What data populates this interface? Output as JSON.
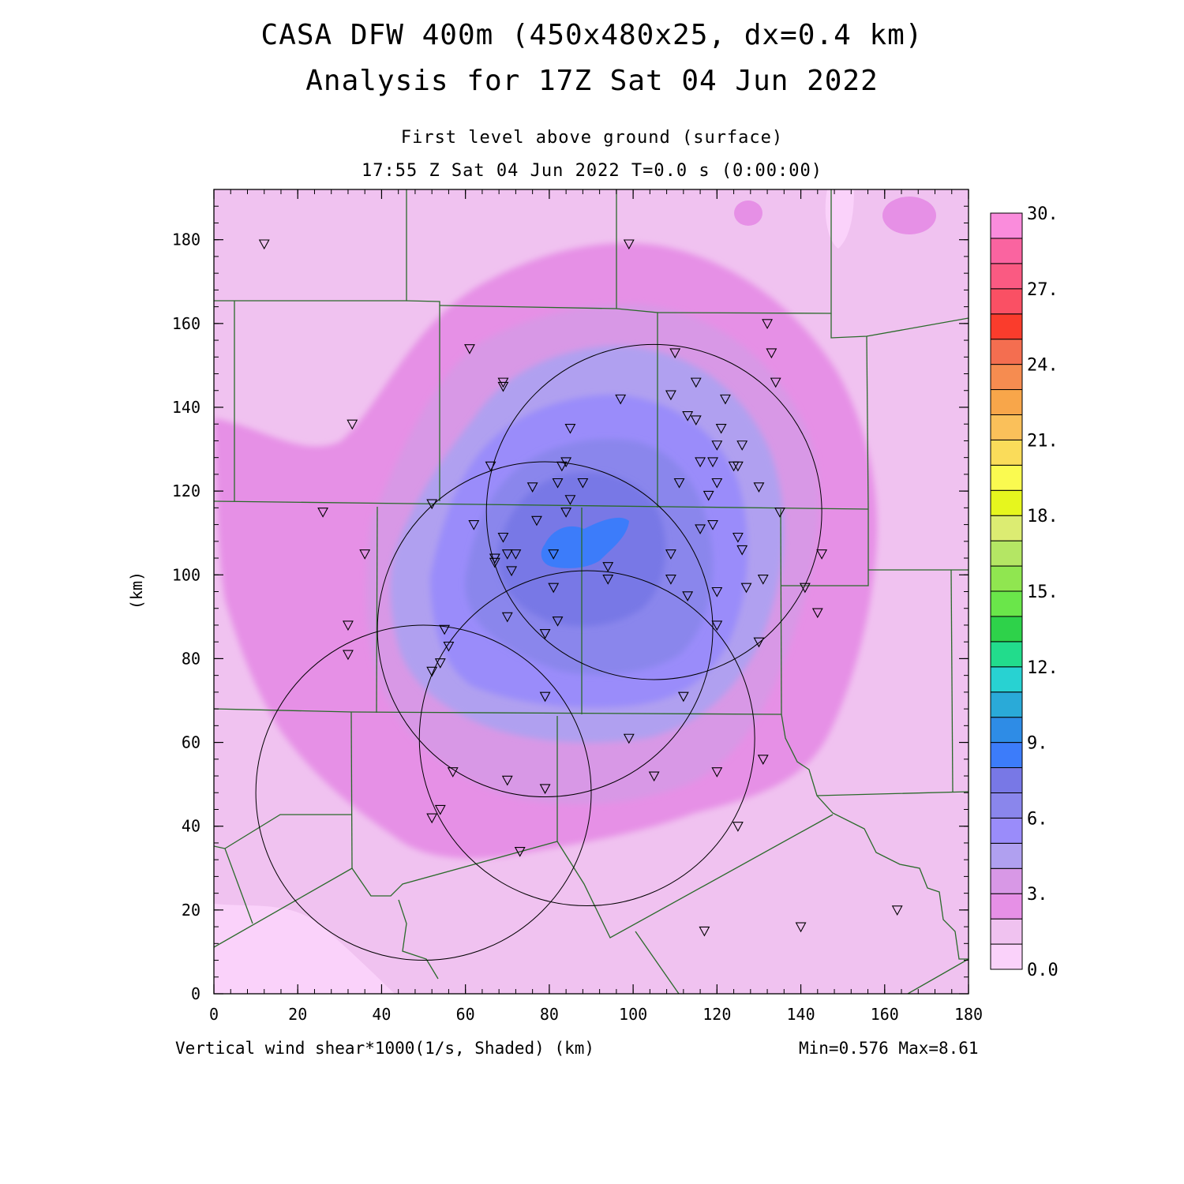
{
  "title": {
    "line1": "CASA DFW 400m (450x480x25, dx=0.4 km)",
    "line2": "Analysis for 17Z Sat 04 Jun 2022"
  },
  "subtitle": {
    "level": "First level above ground (surface)",
    "time": "17:55 Z Sat 04 Jun 2022   T=0.0 s (0:00:00)"
  },
  "footer": {
    "field": "Vertical wind shear*1000(1/s, Shaded)  (km)",
    "range": "Min=0.576 Max=8.61"
  },
  "axes": {
    "x_ticks": [
      "0",
      "20",
      "40",
      "60",
      "80",
      "100",
      "120",
      "140",
      "160",
      "180"
    ],
    "y_ticks": [
      "0",
      "20",
      "40",
      "60",
      "80",
      "100",
      "120",
      "140",
      "160",
      "180"
    ],
    "y_unit": "(km)",
    "x_range": [
      0,
      180
    ],
    "y_range": [
      0,
      192
    ]
  },
  "colorbar": {
    "labels": [
      "0.0",
      "3.",
      "6.",
      "9.",
      "12.",
      "15.",
      "18.",
      "21.",
      "24.",
      "27.",
      "30."
    ],
    "colors": [
      "#fad2fa",
      "#f0c2f0",
      "#e690e6",
      "#d898e6",
      "#b0a0f0",
      "#9a8cfa",
      "#8a86ec",
      "#7878e6",
      "#3c7cfa",
      "#2e8ce6",
      "#2aaad8",
      "#28d2d2",
      "#22dc8c",
      "#2ed24a",
      "#6ae64a",
      "#90e650",
      "#b4e664",
      "#dcec72",
      "#e6f61e",
      "#fafa50",
      "#fadc5a",
      "#fac05a",
      "#f8a64a",
      "#f68c50",
      "#f46e50",
      "#fa3c2c",
      "#fa5064",
      "#fa5a82",
      "#fa64a0",
      "#fa8cdc"
    ],
    "min": 0.0,
    "max": 30.0
  },
  "field_extrema": {
    "min": 0.576,
    "max": 8.61
  },
  "radar_rings": [
    {
      "center_km": [
        105,
        115
      ],
      "radius_km": 40
    },
    {
      "center_km": [
        79,
        87
      ],
      "radius_km": 40
    },
    {
      "center_km": [
        89,
        61
      ],
      "radius_km": 40
    },
    {
      "center_km": [
        50,
        48
      ],
      "radius_km": 40
    }
  ],
  "stations_km": [
    [
      12,
      179
    ],
    [
      99,
      179
    ],
    [
      61,
      154
    ],
    [
      69,
      146
    ],
    [
      69,
      145
    ],
    [
      33,
      136
    ],
    [
      110,
      153
    ],
    [
      133,
      153
    ],
    [
      132,
      160
    ],
    [
      134,
      146
    ],
    [
      97,
      142
    ],
    [
      109,
      143
    ],
    [
      115,
      146
    ],
    [
      113,
      138
    ],
    [
      115,
      137
    ],
    [
      122,
      142
    ],
    [
      85,
      135
    ],
    [
      121,
      135
    ],
    [
      126,
      131
    ],
    [
      120,
      131
    ],
    [
      66,
      126
    ],
    [
      84,
      127
    ],
    [
      83,
      126
    ],
    [
      116,
      127
    ],
    [
      119,
      127
    ],
    [
      125,
      126
    ],
    [
      124,
      126
    ],
    [
      88,
      122
    ],
    [
      82,
      122
    ],
    [
      76,
      121
    ],
    [
      111,
      122
    ],
    [
      120,
      122
    ],
    [
      130,
      121
    ],
    [
      85,
      118
    ],
    [
      118,
      119
    ],
    [
      52,
      117
    ],
    [
      84,
      115
    ],
    [
      135,
      115
    ],
    [
      26,
      115
    ],
    [
      62,
      112
    ],
    [
      77,
      113
    ],
    [
      116,
      111
    ],
    [
      119,
      112
    ],
    [
      125,
      109
    ],
    [
      69,
      109
    ],
    [
      126,
      106
    ],
    [
      36,
      105
    ],
    [
      67,
      104
    ],
    [
      67,
      103
    ],
    [
      81,
      105
    ],
    [
      70,
      105
    ],
    [
      72,
      105
    ],
    [
      109,
      105
    ],
    [
      145,
      105
    ],
    [
      71,
      101
    ],
    [
      94,
      102
    ],
    [
      94,
      99
    ],
    [
      109,
      99
    ],
    [
      131,
      99
    ],
    [
      127,
      97
    ],
    [
      81,
      97
    ],
    [
      113,
      95
    ],
    [
      120,
      96
    ],
    [
      141,
      97
    ],
    [
      144,
      91
    ],
    [
      70,
      90
    ],
    [
      82,
      89
    ],
    [
      120,
      88
    ],
    [
      32,
      88
    ],
    [
      55,
      87
    ],
    [
      79,
      86
    ],
    [
      130,
      84
    ],
    [
      56,
      83
    ],
    [
      32,
      81
    ],
    [
      54,
      79
    ],
    [
      52,
      77
    ],
    [
      79,
      71
    ],
    [
      112,
      71
    ],
    [
      99,
      61
    ],
    [
      131,
      56
    ],
    [
      57,
      53
    ],
    [
      120,
      53
    ],
    [
      70,
      51
    ],
    [
      79,
      49
    ],
    [
      105,
      52
    ],
    [
      54,
      44
    ],
    [
      52,
      42
    ],
    [
      125,
      40
    ],
    [
      73,
      34
    ],
    [
      163,
      20
    ],
    [
      140,
      16
    ],
    [
      117,
      15
    ]
  ]
}
